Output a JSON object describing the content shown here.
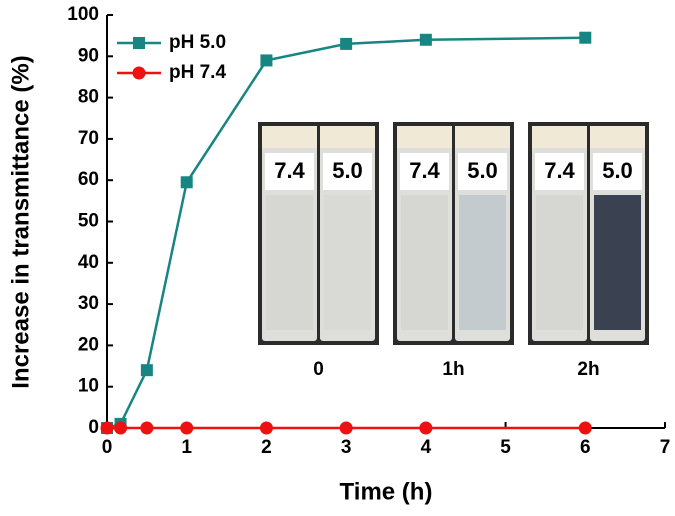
{
  "chart_data": {
    "type": "line",
    "xlabel": "Time (h)",
    "ylabel": "Increase in transmittance (%)",
    "x": [
      0,
      0.17,
      0.5,
      1,
      2,
      3,
      4,
      6
    ],
    "series": [
      {
        "name": "pH 5.0",
        "color": "#178582",
        "marker": "square",
        "values": [
          0,
          1,
          14,
          59.5,
          89,
          93,
          94,
          94.5
        ]
      },
      {
        "name": "pH 7.4",
        "color": "#ee1111",
        "marker": "circle",
        "values": [
          0,
          0,
          0,
          0,
          0,
          0,
          0,
          0
        ]
      }
    ],
    "xlim": [
      0,
      7
    ],
    "xticks": [
      0,
      1,
      2,
      3,
      4,
      5,
      6,
      7
    ],
    "ylim": [
      0,
      100
    ],
    "yticks": [
      0,
      10,
      20,
      30,
      40,
      50,
      60,
      70,
      80,
      90,
      100
    ],
    "legend": "upper left"
  },
  "insets": [
    {
      "caption": "0",
      "left": "7.4",
      "right": "5.0"
    },
    {
      "caption": "1h",
      "left": "7.4",
      "right": "5.0"
    },
    {
      "caption": "2h",
      "left": "7.4",
      "right": "5.0"
    }
  ]
}
